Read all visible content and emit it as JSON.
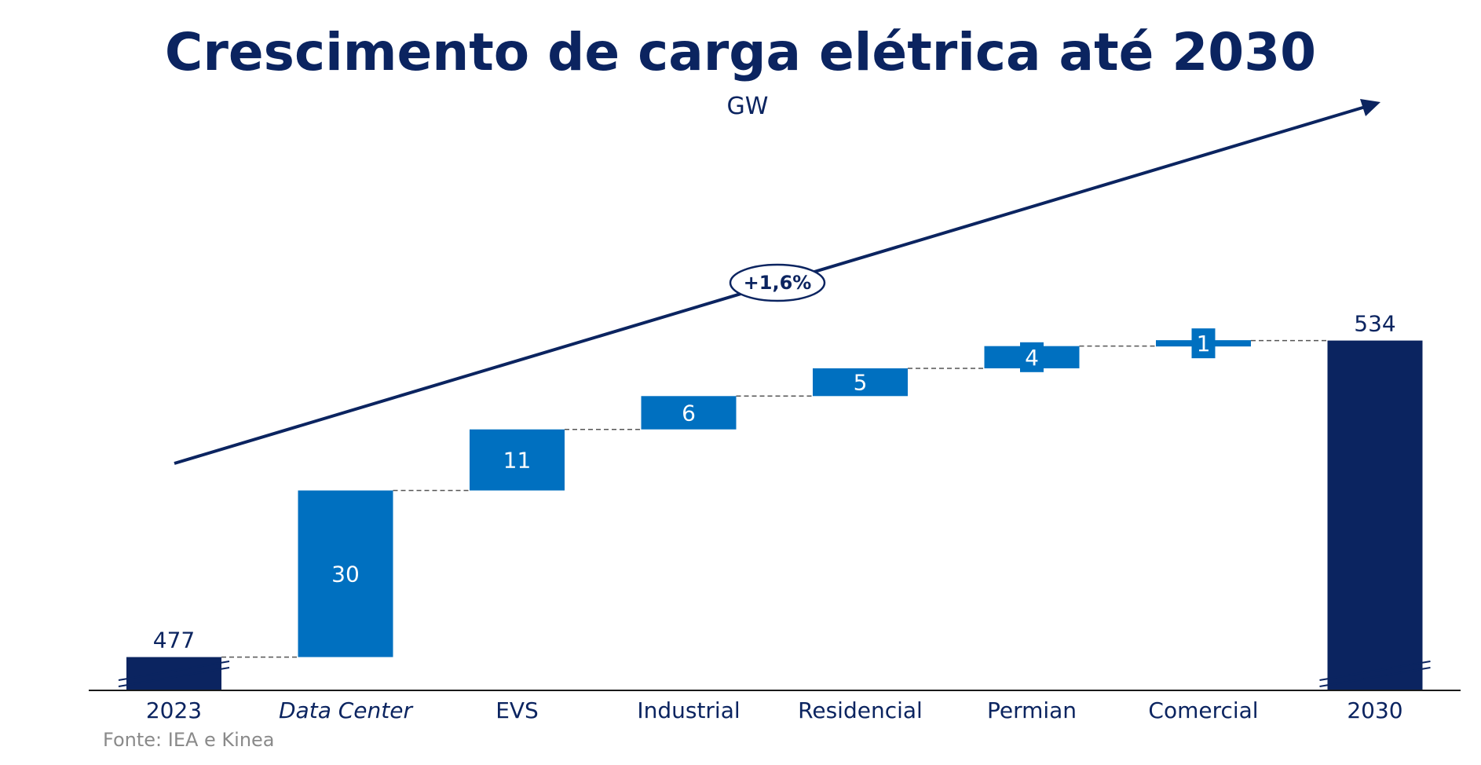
{
  "chart_data": {
    "type": "bar",
    "subtype": "waterfall",
    "title": "Crescimento de carga elétrica até 2030",
    "unit_label": "GW",
    "categories": [
      "2023",
      "Data Center",
      "EVS",
      "Industrial",
      "Residencial",
      "Permian",
      "Comercial",
      "2030"
    ],
    "italic_categories": [
      "Data Center"
    ],
    "values": [
      477,
      30,
      11,
      6,
      5,
      4,
      1,
      534
    ],
    "value_labels": [
      "477",
      "30",
      "11",
      "6",
      "5",
      "4",
      "1",
      "534"
    ],
    "kinds": [
      "total",
      "increment",
      "increment",
      "increment",
      "increment",
      "increment",
      "increment",
      "total"
    ],
    "ylim": [
      440,
      545
    ],
    "axis_break": true,
    "connectors": "dashed",
    "growth_annotation": "+1,6%",
    "source": "Fonte: IEA e Kinea",
    "colors": {
      "total": "#0b2460",
      "increment": "#0070c0",
      "text": "#0b2460",
      "connector": "#555555",
      "source": "#8a8a8a"
    }
  }
}
